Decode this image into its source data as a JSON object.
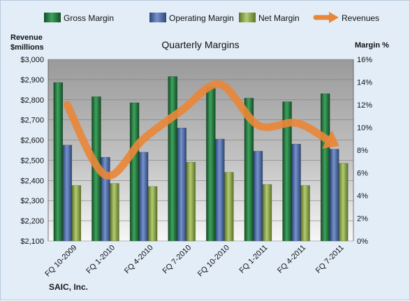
{
  "chart_data": {
    "type": "bar",
    "title": "Quarterly Margins",
    "categories": [
      "FQ 10-2009",
      "FQ 1-2010",
      "FQ 4-2010",
      "FQ 7-2010",
      "FQ 10-2010",
      "FQ 1-2011",
      "FQ 4-2011",
      "FQ 7-2011"
    ],
    "series": [
      {
        "name": "Gross Margin",
        "type": "bar",
        "axis": "left",
        "color": "#1f7a3a",
        "values": [
          2885,
          2815,
          2785,
          2915,
          2865,
          2808,
          2790,
          2830
        ]
      },
      {
        "name": "Operating Margin",
        "type": "bar",
        "axis": "left",
        "color": "#4a6aa9",
        "values": [
          2575,
          2515,
          2540,
          2660,
          2605,
          2545,
          2580,
          2555
        ]
      },
      {
        "name": "Net Margin",
        "type": "bar",
        "axis": "left",
        "color": "#8aa54a",
        "values": [
          2375,
          2385,
          2370,
          2490,
          2440,
          2380,
          2375,
          2485
        ]
      },
      {
        "name": "Revenues",
        "type": "line",
        "axis": "right",
        "color": "#e8873a",
        "values": [
          12.0,
          5.8,
          9.0,
          11.5,
          13.8,
          10.2,
          10.4,
          8.6
        ]
      }
    ],
    "y_left": {
      "title_line1": "Revenue",
      "title_line2": "$millions",
      "range": [
        2100,
        3000
      ],
      "ticks": [
        "$2,100",
        "$2,200",
        "$2,300",
        "$2,400",
        "$2,500",
        "$2,600",
        "$2,700",
        "$2,800",
        "$2,900",
        "$3,000"
      ]
    },
    "y_right": {
      "title": "Margin %",
      "range": [
        0,
        16
      ],
      "ticks": [
        "0%",
        "2%",
        "4%",
        "6%",
        "8%",
        "10%",
        "12%",
        "14%",
        "16%"
      ]
    },
    "grid": true,
    "legend_position": "top"
  },
  "footer": {
    "company": "SAIC, Inc."
  }
}
